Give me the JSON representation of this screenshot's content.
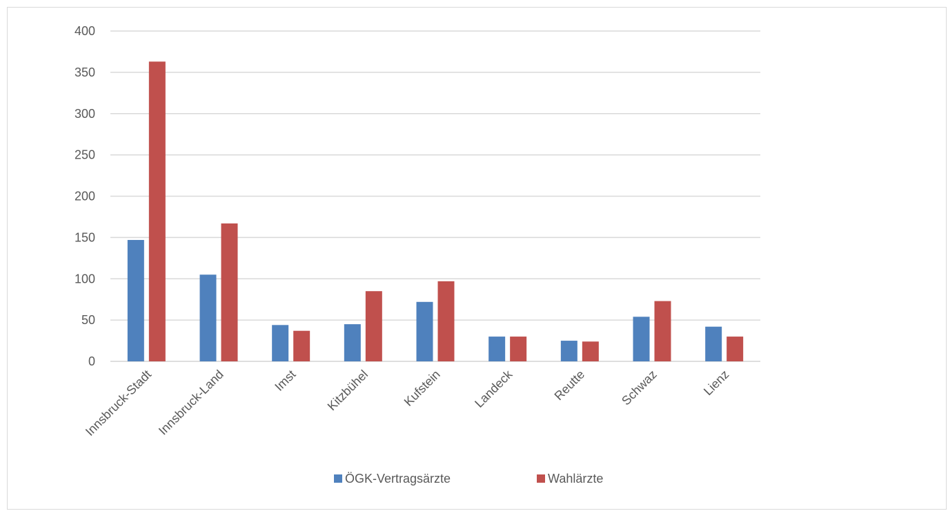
{
  "chart_data": {
    "type": "bar",
    "title": "",
    "xlabel": "",
    "ylabel": "",
    "categories": [
      "Innsbruck-Stadt",
      "Innsbruck-Land",
      "Imst",
      "Kitzbühel",
      "Kufstein",
      "Landeck",
      "Reutte",
      "Schwaz",
      "Lienz"
    ],
    "series": [
      {
        "name": "ÖGK-Vertragsärzte",
        "color": "#4f81bd",
        "values": [
          147,
          105,
          44,
          45,
          72,
          30,
          25,
          54,
          42
        ]
      },
      {
        "name": "Wahlärzte",
        "color": "#c0504d",
        "values": [
          363,
          167,
          37,
          85,
          97,
          30,
          24,
          73,
          30
        ]
      }
    ],
    "ylim": [
      0,
      400
    ],
    "yticks": [
      0,
      50,
      100,
      150,
      200,
      250,
      300,
      350,
      400
    ],
    "grid": true,
    "legend_position": "bottom"
  }
}
